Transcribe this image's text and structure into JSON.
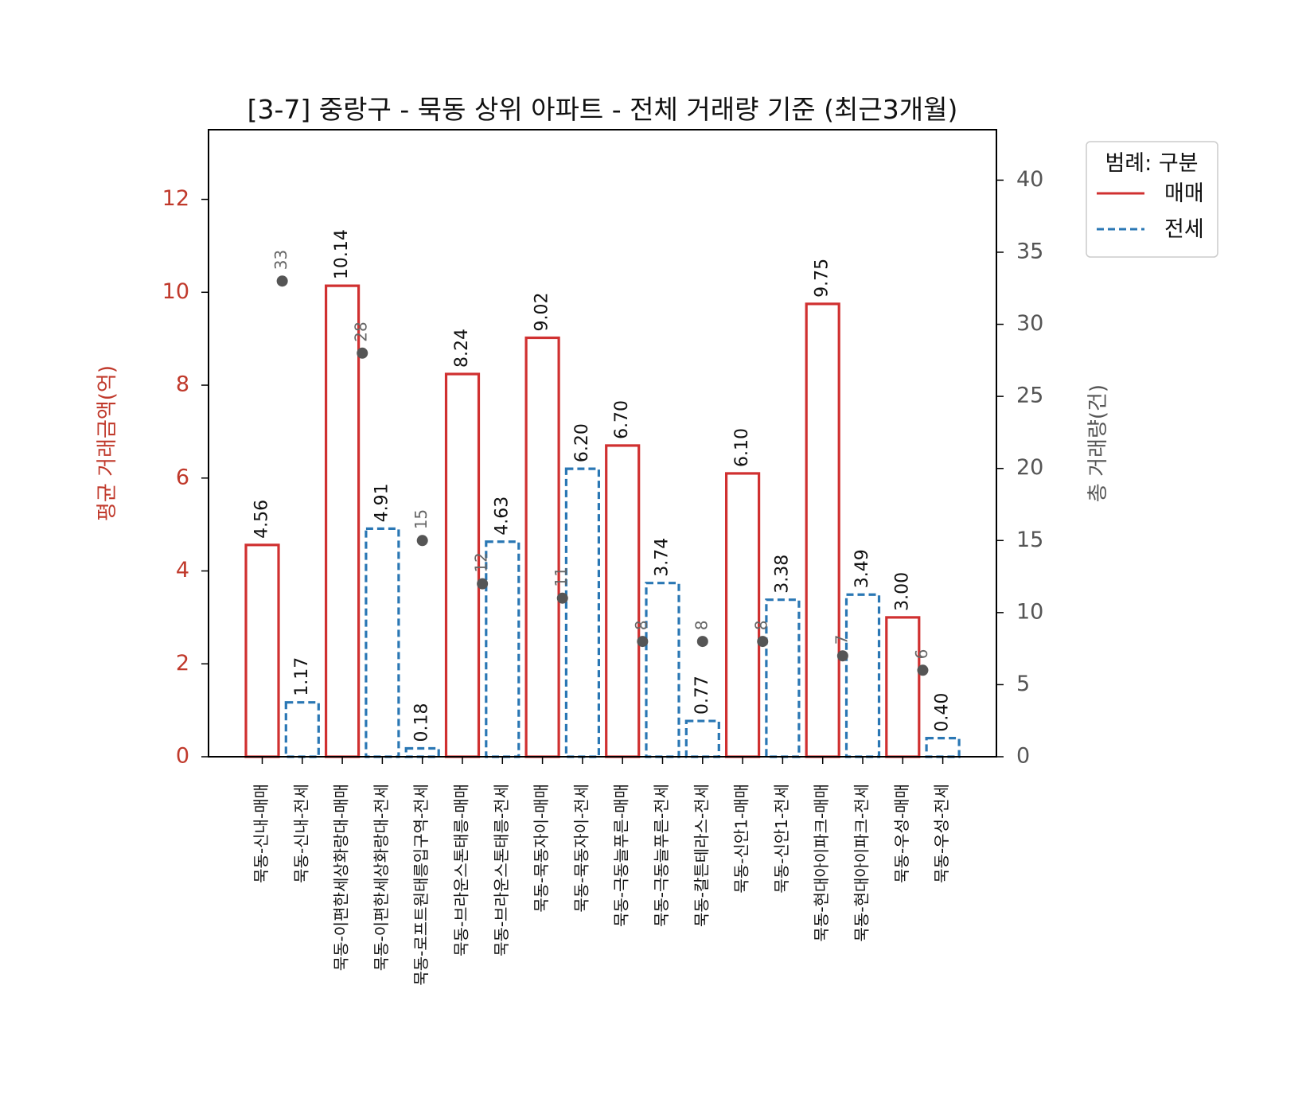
{
  "chart_data": {
    "type": "bar",
    "title": "[3-7] 중랑구 - 묵동 상위 아파트 - 전체 거래량 기준 (최근3개월)",
    "ylabel_left": "평균 거래금액(억)",
    "ylabel_right": "총 거래량(건)",
    "ylim_left": [
      0,
      13.5
    ],
    "ylim_right": [
      0,
      43.5
    ],
    "yticks_left": [
      0,
      2,
      4,
      6,
      8,
      10,
      12
    ],
    "yticks_right": [
      0,
      5,
      10,
      15,
      20,
      25,
      30,
      35,
      40
    ],
    "legend": {
      "title": "범례: 구분",
      "position": "outside-top-right",
      "items": [
        {
          "label": "매매",
          "style": "solid",
          "color": "#d03030"
        },
        {
          "label": "전세",
          "style": "dashed",
          "color": "#2a77b4"
        }
      ]
    },
    "categories": [
      "묵동-신내-매매",
      "묵동-신내-전세",
      "묵동-이편한세상화랑대-매매",
      "묵동-이편한세상화랑대-전세",
      "묵동-로프트원태릉입구역-전세",
      "묵동-브라운스톤태릉-매매",
      "묵동-브라운스톤태릉-전세",
      "묵동-묵동자이-매매",
      "묵동-묵동자이-전세",
      "묵동-극동늘푸른-매매",
      "묵동-극동늘푸른-전세",
      "묵동-칼튼테라스-전세",
      "묵동-신안1-매매",
      "묵동-신안1-전세",
      "묵동-현대아이파크-매매",
      "묵동-현대아이파크-전세",
      "묵동-우성-매매",
      "묵동-우성-전세"
    ],
    "kinds": [
      "매매",
      "전세",
      "매매",
      "전세",
      "전세",
      "매매",
      "전세",
      "매매",
      "전세",
      "매매",
      "전세",
      "전세",
      "매매",
      "전세",
      "매매",
      "전세",
      "매매",
      "전세"
    ],
    "avg_price_labels": [
      "4.56",
      "1.17",
      "10.14",
      "4.91",
      "0.18",
      "8.24",
      "4.63",
      "9.02",
      "6.20",
      "6.70",
      "3.74",
      "0.77",
      "6.10",
      "3.38",
      "9.75",
      "3.49",
      "3.00",
      "0.40"
    ],
    "avg_price": [
      4.56,
      1.17,
      10.14,
      4.91,
      0.18,
      8.24,
      4.63,
      9.02,
      6.2,
      6.7,
      3.74,
      0.77,
      6.1,
      3.38,
      9.75,
      3.49,
      3.0,
      0.4
    ],
    "volume_points": [
      {
        "between": [
          0,
          1
        ],
        "value": 33,
        "label": "33"
      },
      {
        "between": [
          2,
          3
        ],
        "value": 28,
        "label": "28"
      },
      {
        "between": [
          4,
          4
        ],
        "value": 15,
        "label": "15"
      },
      {
        "between": [
          5,
          6
        ],
        "value": 12,
        "label": "12"
      },
      {
        "between": [
          7,
          8
        ],
        "value": 11,
        "label": "11"
      },
      {
        "between": [
          9,
          10
        ],
        "value": 8,
        "label": "8"
      },
      {
        "between": [
          11,
          11
        ],
        "value": 8,
        "label": "8"
      },
      {
        "between": [
          12,
          13
        ],
        "value": 8,
        "label": "8"
      },
      {
        "between": [
          14,
          15
        ],
        "value": 7,
        "label": "7"
      },
      {
        "between": [
          16,
          17
        ],
        "value": 6,
        "label": "6"
      }
    ],
    "colors": {
      "sale": "#d03030",
      "jeonse": "#2a77b4",
      "point": "#555555",
      "left_axis": "#c0392b",
      "right_axis": "#555555"
    }
  }
}
